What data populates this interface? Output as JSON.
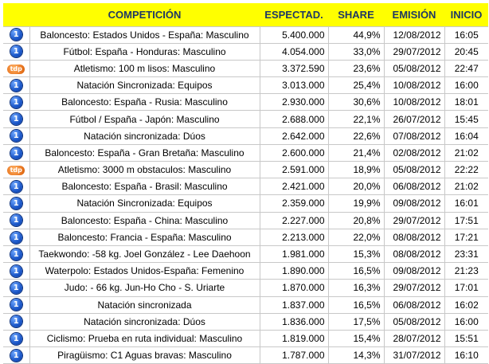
{
  "header": {
    "competicion": "COMPETICIÓN",
    "espectad": "ESPECTAD.",
    "share": "SHARE",
    "emision": "EMISIÓN",
    "inicio": "INICIO"
  },
  "rows": [
    {
      "channel": "1",
      "competicion": "Baloncesto: Estados Unidos - España: Masculino",
      "espectad": "5.400.000",
      "share": "44,9%",
      "emision": "12/08/2012",
      "inicio": "16:05"
    },
    {
      "channel": "1",
      "competicion": "Fútbol: España - Honduras: Masculino",
      "espectad": "4.054.000",
      "share": "33,0%",
      "emision": "29/07/2012",
      "inicio": "20:45"
    },
    {
      "channel": "tdp",
      "competicion": "Atletismo: 100 m lisos: Masculino",
      "espectad": "3.372.590",
      "share": "23,6%",
      "emision": "05/08/2012",
      "inicio": "22:47"
    },
    {
      "channel": "1",
      "competicion": "Natación Sincronizada: Equipos",
      "espectad": "3.013.000",
      "share": "25,4%",
      "emision": "10/08/2012",
      "inicio": "16:00"
    },
    {
      "channel": "1",
      "competicion": "Baloncesto: España - Rusia: Masculino",
      "espectad": "2.930.000",
      "share": "30,6%",
      "emision": "10/08/2012",
      "inicio": "18:01"
    },
    {
      "channel": "1",
      "competicion": "Fútbol / España - Japón: Masculino",
      "espectad": "2.688.000",
      "share": "22,1%",
      "emision": "26/07/2012",
      "inicio": "15:45"
    },
    {
      "channel": "1",
      "competicion": "Natación sincronizada: Dúos",
      "espectad": "2.642.000",
      "share": "22,6%",
      "emision": "07/08/2012",
      "inicio": "16:04"
    },
    {
      "channel": "1",
      "competicion": "Baloncesto: España - Gran Bretaña: Masculino",
      "espectad": "2.600.000",
      "share": "21,4%",
      "emision": "02/08/2012",
      "inicio": "21:02"
    },
    {
      "channel": "tdp",
      "competicion": "Atletismo: 3000 m obstaculos: Masculino",
      "espectad": "2.591.000",
      "share": "18,9%",
      "emision": "05/08/2012",
      "inicio": "22:22"
    },
    {
      "channel": "1",
      "competicion": "Baloncesto: España - Brasil: Masculino",
      "espectad": "2.421.000",
      "share": "20,0%",
      "emision": "06/08/2012",
      "inicio": "21:02"
    },
    {
      "channel": "1",
      "competicion": "Natación Sincronizada: Equipos",
      "espectad": "2.359.000",
      "share": "19,9%",
      "emision": "09/08/2012",
      "inicio": "16:01"
    },
    {
      "channel": "1",
      "competicion": "Baloncesto: España - China: Masculino",
      "espectad": "2.227.000",
      "share": "20,8%",
      "emision": "29/07/2012",
      "inicio": "17:51"
    },
    {
      "channel": "1",
      "competicion": "Baloncesto: Francia - España: Masculino",
      "espectad": "2.213.000",
      "share": "22,0%",
      "emision": "08/08/2012",
      "inicio": "17:21"
    },
    {
      "channel": "1",
      "competicion": "Taekwondo: -58 kg. Joel González - Lee Daehoon",
      "espectad": "1.981.000",
      "share": "15,3%",
      "emision": "08/08/2012",
      "inicio": "23:31"
    },
    {
      "channel": "1",
      "competicion": "Waterpolo: Estados Unidos-España: Femenino",
      "espectad": "1.890.000",
      "share": "16,5%",
      "emision": "09/08/2012",
      "inicio": "21:23"
    },
    {
      "channel": "1",
      "competicion": "Judo: - 66 kg. Jun-Ho Cho - S. Uriarte",
      "espectad": "1.870.000",
      "share": "16,3%",
      "emision": "29/07/2012",
      "inicio": "17:01"
    },
    {
      "channel": "1",
      "competicion": "Natación sincronizada",
      "espectad": "1.837.000",
      "share": "16,5%",
      "emision": "06/08/2012",
      "inicio": "16:02"
    },
    {
      "channel": "1",
      "competicion": "Natación sincronizada: Dúos",
      "espectad": "1.836.000",
      "share": "17,5%",
      "emision": "05/08/2012",
      "inicio": "16:00"
    },
    {
      "channel": "1",
      "competicion": "Ciclismo: Prueba en ruta individual: Masculino",
      "espectad": "1.819.000",
      "share": "15,4%",
      "emision": "28/07/2012",
      "inicio": "15:51"
    },
    {
      "channel": "1",
      "competicion": "Piragüismo: C1  Aguas bravas: Masculino",
      "espectad": "1.787.000",
      "share": "14,3%",
      "emision": "31/07/2012",
      "inicio": "16:10"
    }
  ]
}
